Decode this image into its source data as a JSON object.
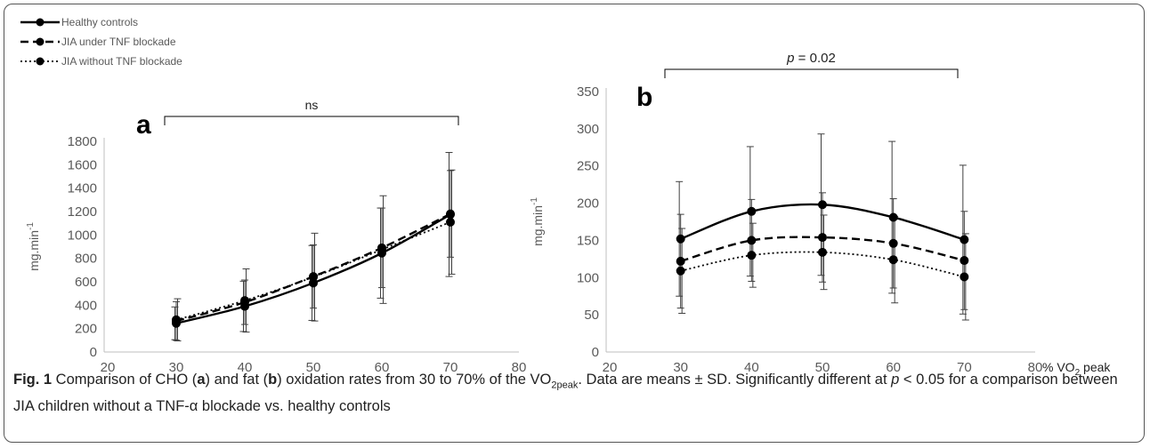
{
  "legend": [
    {
      "name": "Healthy controls",
      "style": "solid"
    },
    {
      "name": "JIA under TNF blockade",
      "style": "dashed"
    },
    {
      "name": "JIA without TNF blockade",
      "style": "dotted"
    }
  ],
  "chart_data": [
    {
      "type": "line",
      "panel_label": "a",
      "significance_label": "ns",
      "ylabel": "mg.min",
      "ylabel_superscript": "-1",
      "xlabel": "",
      "x_ticks": [
        20,
        30,
        40,
        50,
        60,
        70,
        80
      ],
      "y_ticks": [
        0,
        200,
        400,
        600,
        800,
        1000,
        1200,
        1400,
        1600,
        1800
      ],
      "xlim": [
        20,
        80
      ],
      "ylim": [
        0,
        1800
      ],
      "grid": false,
      "legend_position": "top-left",
      "x": [
        30,
        40,
        50,
        60,
        70
      ],
      "series": [
        {
          "name": "Healthy controls",
          "values": [
            245,
            390,
            590,
            845,
            1175
          ],
          "sd": [
            140,
            215,
            320,
            385,
            530
          ]
        },
        {
          "name": "JIA under TNF blockade",
          "values": [
            265,
            425,
            645,
            890,
            1180
          ],
          "sd": [
            165,
            190,
            270,
            340,
            370
          ]
        },
        {
          "name": "JIA without TNF blockade",
          "values": [
            275,
            440,
            640,
            875,
            1110
          ],
          "sd": [
            180,
            270,
            375,
            460,
            445
          ]
        }
      ]
    },
    {
      "type": "line",
      "panel_label": "b",
      "significance_label_prefix": "p",
      "significance_label_suffix": " = 0.02",
      "ylabel": "mg.min",
      "ylabel_superscript": "-1",
      "xlabel_prefix": "% VO",
      "xlabel_subscript": "2",
      "xlabel_suffix": " peak",
      "x_ticks": [
        20,
        30,
        40,
        50,
        60,
        70,
        80
      ],
      "y_ticks": [
        0,
        50,
        100,
        150,
        200,
        250,
        300,
        350
      ],
      "xlim": [
        20,
        80
      ],
      "ylim": [
        0,
        350
      ],
      "grid": false,
      "x": [
        30,
        40,
        50,
        60,
        70
      ],
      "series": [
        {
          "name": "Healthy controls",
          "values": [
            152,
            189,
            198,
            181,
            151
          ],
          "sd": [
            77,
            87,
            95,
            102,
            100
          ]
        },
        {
          "name": "JIA under TNF blockade",
          "values": [
            122,
            150,
            154,
            146,
            123
          ],
          "sd": [
            63,
            55,
            60,
            60,
            66
          ]
        },
        {
          "name": "JIA without TNF blockade",
          "values": [
            109,
            130,
            134,
            124,
            101
          ],
          "sd": [
            57,
            43,
            50,
            58,
            58
          ]
        }
      ]
    }
  ],
  "caption": {
    "fig_label": "Fig. 1",
    "t1": " Comparison of CHO (",
    "a": "a",
    "t2": ") and fat (",
    "b": "b",
    "t3": ") oxidation rates from 30 to 70% of the VO",
    "sub": "2peak",
    "t4": ". Data are means ± SD. Significantly different at ",
    "p": "p",
    "t5": " < 0.05 for a comparison between JIA children without a TNF-α blockade vs. healthy controls"
  }
}
